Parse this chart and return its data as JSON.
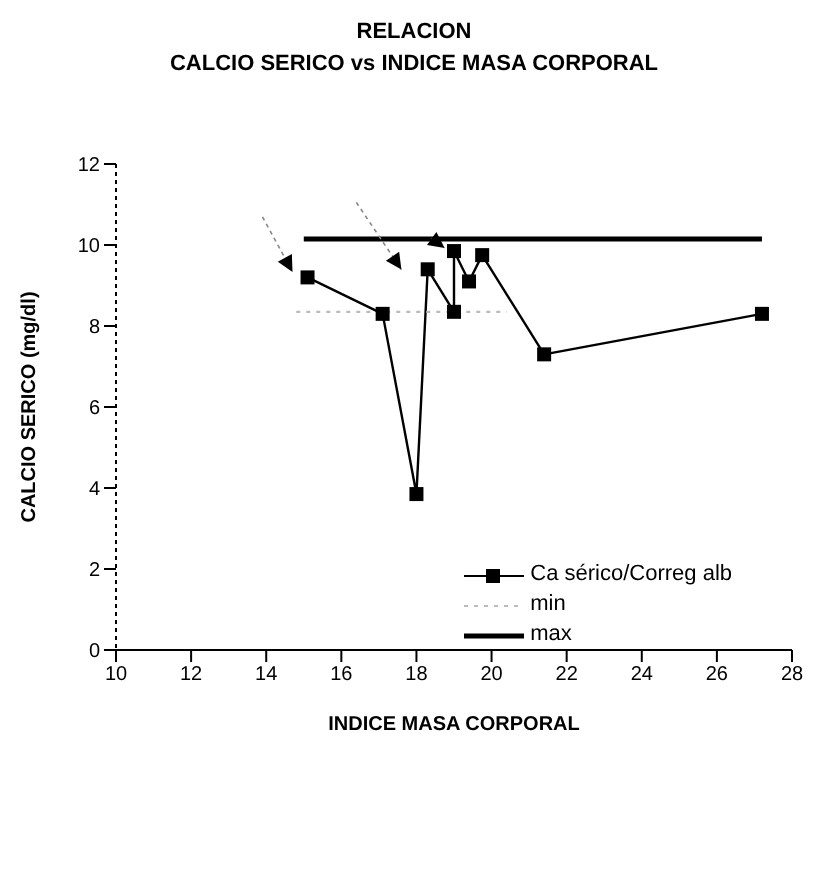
{
  "chart_data": {
    "type": "line",
    "title": "RELACION",
    "subtitle": "CALCIO SERICO vs INDICE MASA CORPORAL",
    "xlabel": "INDICE MASA CORPORAL",
    "ylabel": "CALCIO SERICO (mg/dl)",
    "series": [
      {
        "name": "Ca sérico/Correg alb",
        "color": "#000000",
        "marker": "square",
        "line_style": "solid",
        "x": [
          15.1,
          17.1,
          18.0,
          18.3,
          19.0,
          19.0,
          19.4,
          19.75,
          21.4,
          27.2
        ],
        "values": [
          9.2,
          8.3,
          3.85,
          9.4,
          8.35,
          9.85,
          9.1,
          9.75,
          7.3,
          8.3
        ]
      },
      {
        "name": "min",
        "color": "#bbbbbb",
        "marker": "none",
        "line_style": "dotted",
        "x": [
          14.8,
          20.4
        ],
        "values": [
          8.35,
          8.35
        ]
      },
      {
        "name": "max",
        "color": "#000000",
        "marker": "none",
        "line_style": "solid",
        "x": [
          15.0,
          27.2
        ],
        "values": [
          10.15,
          10.15
        ]
      }
    ],
    "xlim": [
      10,
      28
    ],
    "xticks": [
      10,
      12,
      14,
      16,
      18,
      20,
      22,
      24,
      26,
      28
    ],
    "ylim": [
      0,
      12
    ],
    "yticks": [
      0,
      2,
      4,
      6,
      8,
      10,
      12
    ],
    "grid": false,
    "legend": "bottom right"
  }
}
